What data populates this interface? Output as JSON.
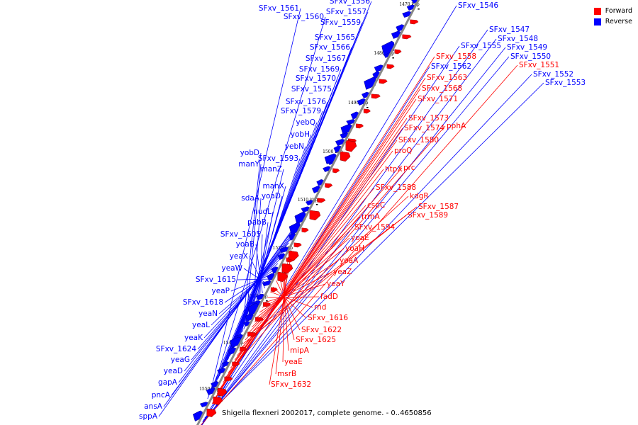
{
  "legend": {
    "forward": {
      "label": "Forward",
      "color": "#ff0000"
    },
    "reverse": {
      "label": "Reverse",
      "color": "#0000ff"
    }
  },
  "caption": "Shigella flexneri 2002017, complete genome. - 0..4650856",
  "ticks": [
    "1470 kbp",
    "1480 kbp",
    "1490 kbp",
    "1500 kbp",
    "1510 kbp",
    "1520 kbp",
    "1530 kbp",
    "1540 kbp",
    "1550 kbp"
  ],
  "reverse_labels": [
    "SFxv_1556",
    "SFxv_1561",
    "SFxv_1557",
    "SFxv_1560",
    "SFxv_1559",
    "SFxv_1565",
    "SFxv_1566",
    "SFxv_1567",
    "SFxv_1569",
    "SFxv_1570",
    "SFxv_1575",
    "SFxv_1576",
    "SFxv_1579",
    "yebQ",
    "yobH",
    "yebN",
    "yobD",
    "SFxv_1593",
    "manY",
    "manZ",
    "manX",
    "yoaD",
    "sdaA",
    "nudL",
    "pabB",
    "SFxv_1605",
    "yoaB",
    "yeaX",
    "yeaW",
    "SFxv_1615",
    "yeaP",
    "SFxv_1618",
    "yeaN",
    "yeaL",
    "yeaK",
    "SFxv_1624",
    "yeaG",
    "yeaD",
    "gapA",
    "pncA",
    "ansA",
    "sppA"
  ],
  "reverse_right_labels": [
    "SFxv_1546",
    "SFxv_1547",
    "SFxv_1548",
    "SFxv_1549",
    "SFxv_1550",
    "SFxv_1552",
    "SFxv_1553",
    "SFxv_1555",
    "SFxv_1562"
  ],
  "forward_labels": [
    "SFxv_1551",
    "SFxv_1558",
    "SFxv_1563",
    "SFxv_1568",
    "SFxv_1571",
    "SFxv_1573",
    "SFxv_1574",
    "pphA",
    "SFxv_1580",
    "proQ",
    "htpX",
    "prc",
    "SFxv_1588",
    "kdgR",
    "SFxv_1587",
    "cspC",
    "SFxv_1589",
    "rrmA",
    "SFxv_1594",
    "yoaE",
    "yoaH",
    "yoaA",
    "yeaZ",
    "yeaY",
    "fadD",
    "rnd",
    "SFxv_1616",
    "SFxv_1622",
    "SFxv_1625",
    "mipA",
    "yeaE",
    "msrB",
    "SFxv_1632"
  ]
}
